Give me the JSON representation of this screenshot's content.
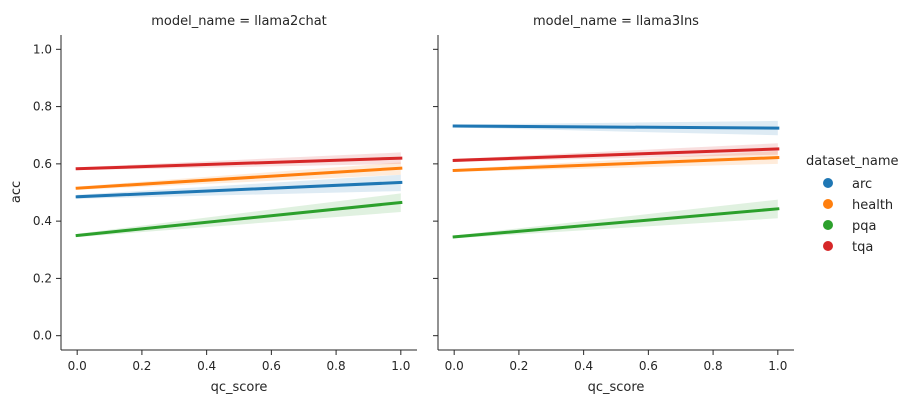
{
  "chart_data": {
    "type": "line",
    "legend": {
      "title": "dataset_name",
      "placement": "right",
      "entries": [
        {
          "name": "arc",
          "color": "#1f77b4"
        },
        {
          "name": "health",
          "color": "#ff7f0e"
        },
        {
          "name": "pqa",
          "color": "#2ca02c"
        },
        {
          "name": "tqa",
          "color": "#d62728"
        }
      ]
    },
    "ylabel": "acc",
    "ylim": [
      -0.05,
      1.05
    ],
    "yticks": [
      "0.0",
      "0.2",
      "0.4",
      "0.6",
      "0.8",
      "1.0"
    ],
    "xlim": [
      -0.05,
      1.05
    ],
    "xticks": [
      "0.0",
      "0.2",
      "0.4",
      "0.6",
      "0.8",
      "1.0"
    ],
    "grid": false,
    "panels": [
      {
        "title": "model_name = llama2chat",
        "xlabel": "qc_score",
        "series": [
          {
            "name": "arc",
            "x": [
              0.0,
              1.0
            ],
            "y": [
              0.485,
              0.535
            ],
            "ci_lower": [
              0.478,
              0.505
            ],
            "ci_upper": [
              0.492,
              0.562
            ]
          },
          {
            "name": "health",
            "x": [
              0.0,
              1.0
            ],
            "y": [
              0.515,
              0.585
            ],
            "ci_lower": [
              0.509,
              0.562
            ],
            "ci_upper": [
              0.521,
              0.605
            ]
          },
          {
            "name": "pqa",
            "x": [
              0.0,
              1.0
            ],
            "y": [
              0.35,
              0.465
            ],
            "ci_lower": [
              0.344,
              0.432
            ],
            "ci_upper": [
              0.356,
              0.497
            ]
          },
          {
            "name": "tqa",
            "x": [
              0.0,
              1.0
            ],
            "y": [
              0.583,
              0.62
            ],
            "ci_lower": [
              0.578,
              0.6
            ],
            "ci_upper": [
              0.588,
              0.64
            ]
          }
        ]
      },
      {
        "title": "model_name = llama3Ins",
        "xlabel": "qc_score",
        "series": [
          {
            "name": "arc",
            "x": [
              0.0,
              1.0
            ],
            "y": [
              0.732,
              0.725
            ],
            "ci_lower": [
              0.727,
              0.7
            ],
            "ci_upper": [
              0.737,
              0.75
            ]
          },
          {
            "name": "health",
            "x": [
              0.0,
              1.0
            ],
            "y": [
              0.577,
              0.622
            ],
            "ci_lower": [
              0.572,
              0.6
            ],
            "ci_upper": [
              0.582,
              0.645
            ]
          },
          {
            "name": "pqa",
            "x": [
              0.0,
              1.0
            ],
            "y": [
              0.345,
              0.443
            ],
            "ci_lower": [
              0.34,
              0.41
            ],
            "ci_upper": [
              0.35,
              0.475
            ]
          },
          {
            "name": "tqa",
            "x": [
              0.0,
              1.0
            ],
            "y": [
              0.612,
              0.652
            ],
            "ci_lower": [
              0.607,
              0.632
            ],
            "ci_upper": [
              0.617,
              0.672
            ]
          }
        ]
      }
    ]
  }
}
